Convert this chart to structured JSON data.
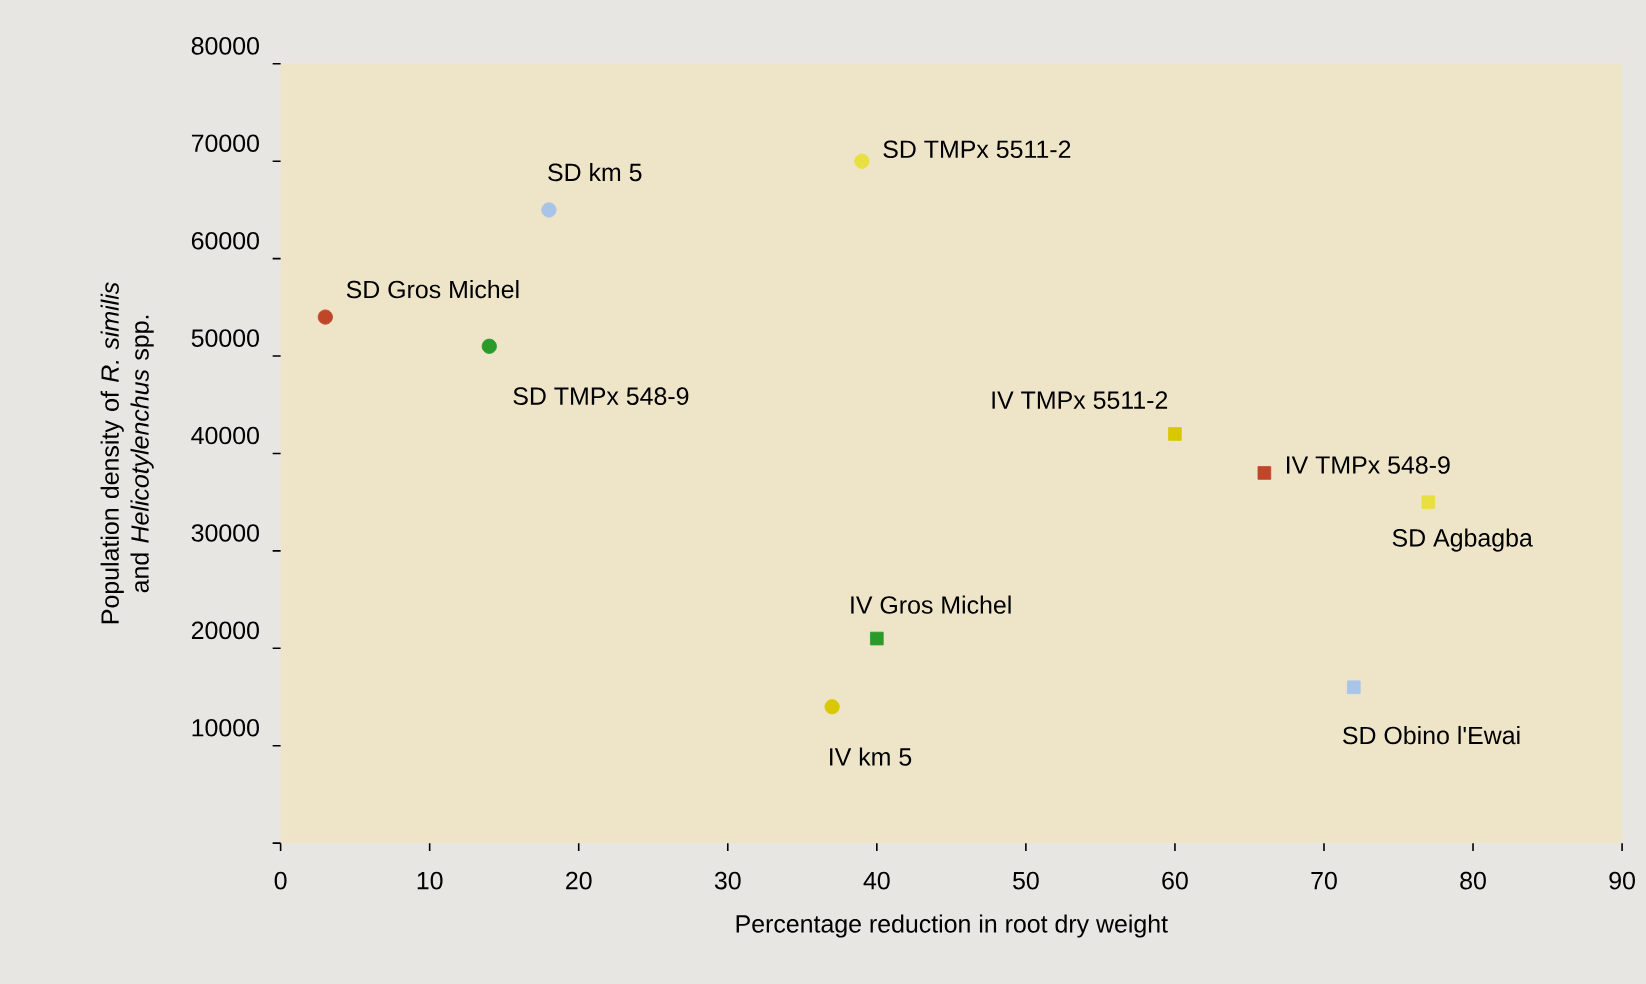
{
  "chart_data": {
    "type": "scatter",
    "xlabel": "Percentage reduction in root dry weight",
    "ylabel": "Population density of *R. similis* and *Helicotylenchus* spp.",
    "xlim": [
      0,
      90
    ],
    "xticks": [
      0,
      10,
      20,
      30,
      40,
      50,
      60,
      70,
      80,
      90
    ],
    "ylim": [
      0,
      80000
    ],
    "yticks": [
      {
        "value": 0,
        "label": null
      },
      10000,
      20000,
      30000,
      40000,
      50000,
      60000,
      70000,
      80000
    ],
    "grid": false,
    "series": [
      {
        "name": "SD Gros Michel",
        "color": "#c0462a",
        "marker": "circle",
        "x": [
          3
        ],
        "values": [
          54000
        ]
      },
      {
        "name": "SD km 5",
        "color": "#a8c4e8",
        "marker": "circle",
        "x": [
          18
        ],
        "values": [
          65000
        ]
      },
      {
        "name": "SD TMPx 548-9",
        "color": "#2a9a2a",
        "marker": "circle",
        "x": [
          14
        ],
        "values": [
          51000
        ]
      },
      {
        "name": "SD TMPx 5511-2",
        "color": "#e8e040",
        "marker": "circle",
        "x": [
          39
        ],
        "values": [
          70000
        ]
      },
      {
        "name": "IV TMPx 5511-2",
        "color": "#d8c800",
        "marker": "square",
        "x": [
          60
        ],
        "values": [
          42000
        ]
      },
      {
        "name": "IV TMPx 548-9",
        "color": "#c0462a",
        "marker": "square",
        "x": [
          66
        ],
        "values": [
          38000
        ]
      },
      {
        "name": "SD Agbagba",
        "color": "#e8e040",
        "marker": "square",
        "x": [
          77
        ],
        "values": [
          35000
        ]
      },
      {
        "name": "IV Gros Michel",
        "color": "#2a9a2a",
        "marker": "square",
        "x": [
          40
        ],
        "values": [
          21000
        ]
      },
      {
        "name": "IV km 5",
        "color": "#d8c800",
        "marker": "circle",
        "x": [
          37
        ],
        "values": [
          14000
        ]
      },
      {
        "name": "SD Obino l'Ewai",
        "color": "#a8c4e8",
        "marker": "square",
        "x": [
          72
        ],
        "values": [
          16000
        ]
      }
    ]
  }
}
